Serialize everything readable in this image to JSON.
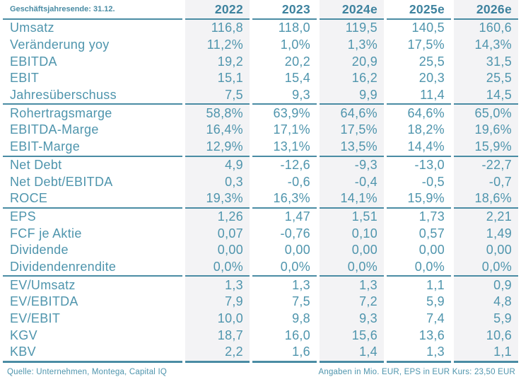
{
  "colors": {
    "text": "#4f95ad",
    "header_text": "#3d829e",
    "line": "#4a8ca4",
    "shaded_column_bg": "#f3f3f5",
    "background": "#ffffff"
  },
  "table": {
    "corner_label": "Geschäftsjahresende: 31.12.",
    "columns": [
      "2022",
      "2023",
      "2024e",
      "2025e",
      "2026e"
    ],
    "sections": [
      {
        "rows": [
          {
            "label": "Umsatz",
            "values": [
              "116,8",
              "118,0",
              "119,5",
              "140,5",
              "160,6"
            ]
          },
          {
            "label": "Veränderung yoy",
            "values": [
              "11,2%",
              "1,0%",
              "1,3%",
              "17,5%",
              "14,3%"
            ]
          },
          {
            "label": "EBITDA",
            "values": [
              "19,2",
              "20,2",
              "20,9",
              "25,5",
              "31,5"
            ]
          },
          {
            "label": "EBIT",
            "values": [
              "15,1",
              "15,4",
              "16,2",
              "20,3",
              "25,5"
            ]
          },
          {
            "label": "Jahresüberschuss",
            "values": [
              "7,5",
              "9,3",
              "9,9",
              "11,4",
              "14,5"
            ]
          }
        ]
      },
      {
        "rows": [
          {
            "label": "Rohertragsmarge",
            "values": [
              "58,8%",
              "63,9%",
              "64,6%",
              "64,6%",
              "65,0%"
            ]
          },
          {
            "label": "EBITDA-Marge",
            "values": [
              "16,4%",
              "17,1%",
              "17,5%",
              "18,2%",
              "19,6%"
            ]
          },
          {
            "label": "EBIT-Marge",
            "values": [
              "12,9%",
              "13,1%",
              "13,5%",
              "14,4%",
              "15,9%"
            ]
          }
        ]
      },
      {
        "rows": [
          {
            "label": "Net Debt",
            "values": [
              "4,9",
              "-12,6",
              "-9,3",
              "-13,0",
              "-22,7"
            ]
          },
          {
            "label": "Net Debt/EBITDA",
            "values": [
              "0,3",
              "-0,6",
              "-0,4",
              "-0,5",
              "-0,7"
            ]
          },
          {
            "label": "ROCE",
            "values": [
              "19,3%",
              "16,3%",
              "14,1%",
              "15,9%",
              "18,6%"
            ]
          }
        ]
      },
      {
        "rows": [
          {
            "label": "EPS",
            "values": [
              "1,26",
              "1,47",
              "1,51",
              "1,73",
              "2,21"
            ]
          },
          {
            "label": "FCF je Aktie",
            "values": [
              "0,07",
              "-0,76",
              "0,10",
              "0,57",
              "1,49"
            ]
          },
          {
            "label": "Dividende",
            "values": [
              "0,00",
              "0,00",
              "0,00",
              "0,00",
              "0,00"
            ]
          },
          {
            "label": "Dividendenrendite",
            "values": [
              "0,0%",
              "0,0%",
              "0,0%",
              "0,0%",
              "0,0%"
            ]
          }
        ]
      },
      {
        "rows": [
          {
            "label": "EV/Umsatz",
            "values": [
              "1,3",
              "1,3",
              "1,3",
              "1,1",
              "0,9"
            ]
          },
          {
            "label": "EV/EBITDA",
            "values": [
              "7,9",
              "7,5",
              "7,2",
              "5,9",
              "4,8"
            ]
          },
          {
            "label": "EV/EBIT",
            "values": [
              "10,0",
              "9,8",
              "9,3",
              "7,4",
              "5,9"
            ]
          },
          {
            "label": "KGV",
            "values": [
              "18,7",
              "16,0",
              "15,6",
              "13,6",
              "10,6"
            ]
          },
          {
            "label": "KBV",
            "values": [
              "2,2",
              "1,6",
              "1,4",
              "1,3",
              "1,1"
            ]
          }
        ]
      }
    ]
  },
  "footer": {
    "source": "Quelle: Unternehmen, Montega, Capital IQ",
    "units": "Angaben in Mio. EUR, EPS in EUR Kurs: 23,50 EUR"
  }
}
